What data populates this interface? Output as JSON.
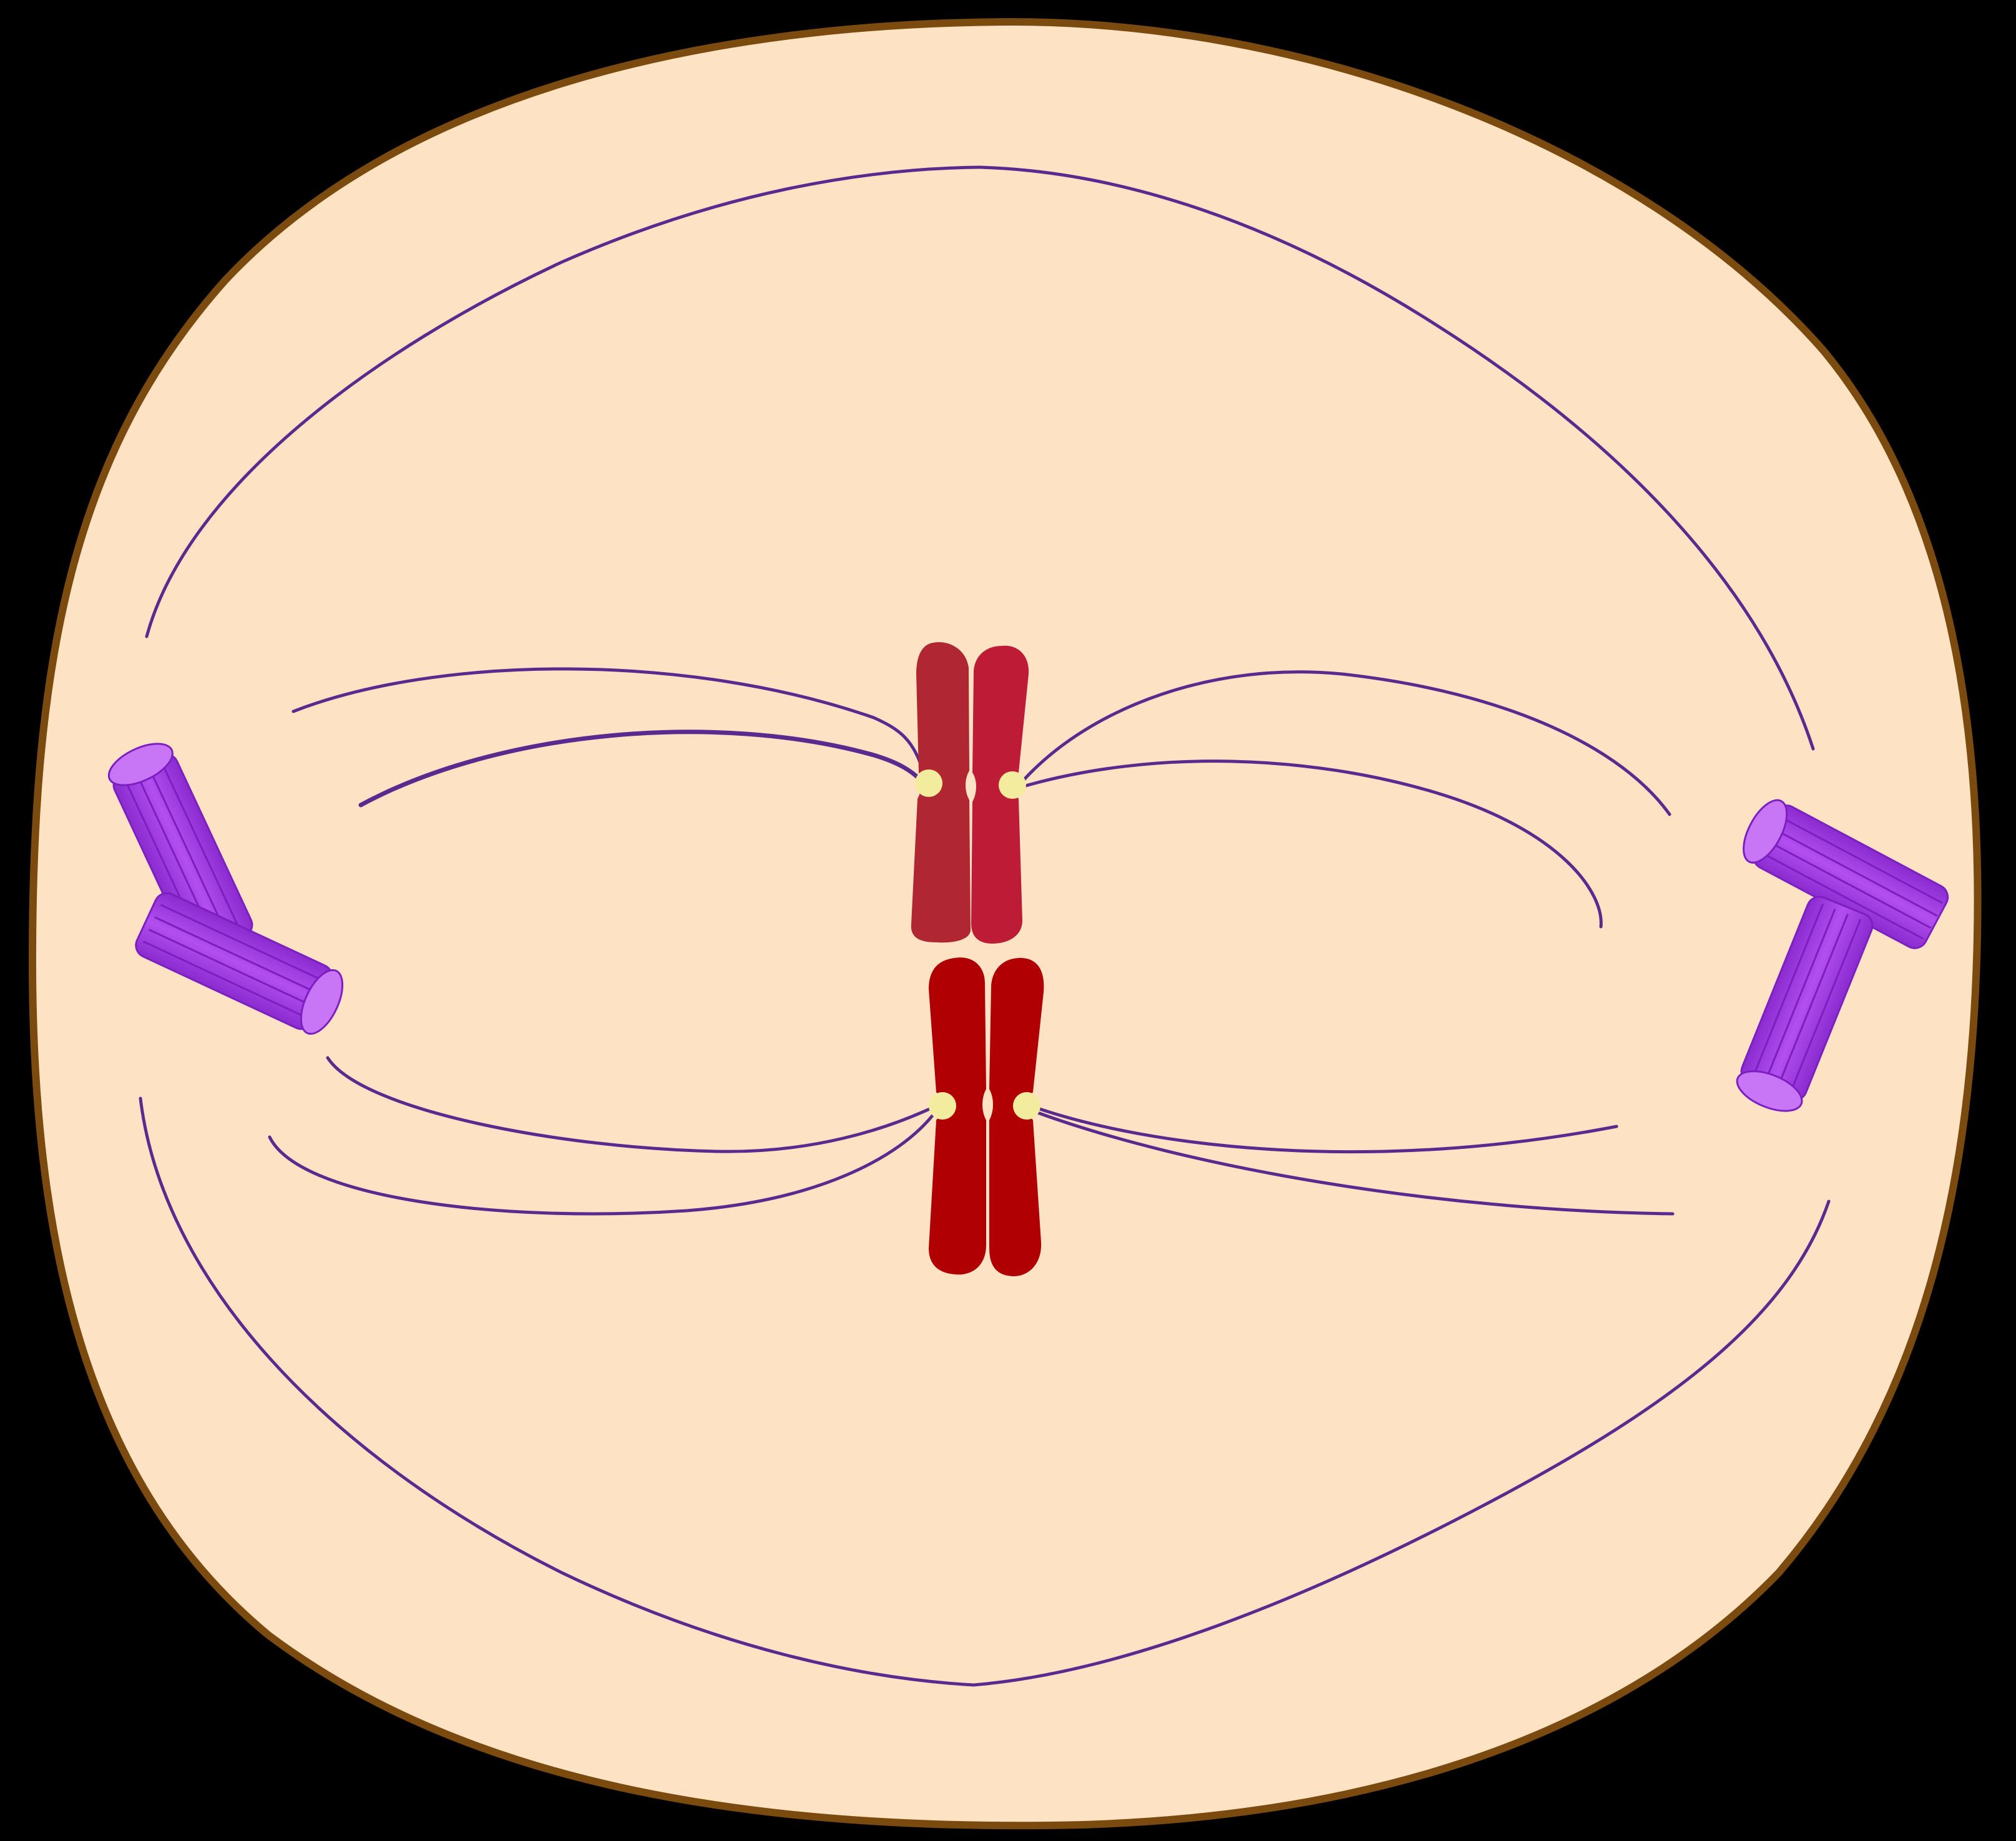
{
  "diagram": {
    "title": "",
    "colors": {
      "background": "#000000",
      "cytoplasm": "#FDE3C4",
      "membrane": "#7A4A0F",
      "spindle_fiber": "#5B2A8E",
      "centriole": "#A43BE6",
      "centriole_light": "#C876F5",
      "centriole_dark": "#7C1FC0",
      "chromosome_upper_left": "#B02632",
      "chromosome_upper_right": "#BE1B37",
      "chromosome_lower": "#B10004",
      "centromere": "#F3EB9E"
    },
    "structures": [
      "cell-membrane",
      "cytoplasm",
      "spindle-fibers",
      "centrioles",
      "chromosomes",
      "centromeres"
    ]
  }
}
